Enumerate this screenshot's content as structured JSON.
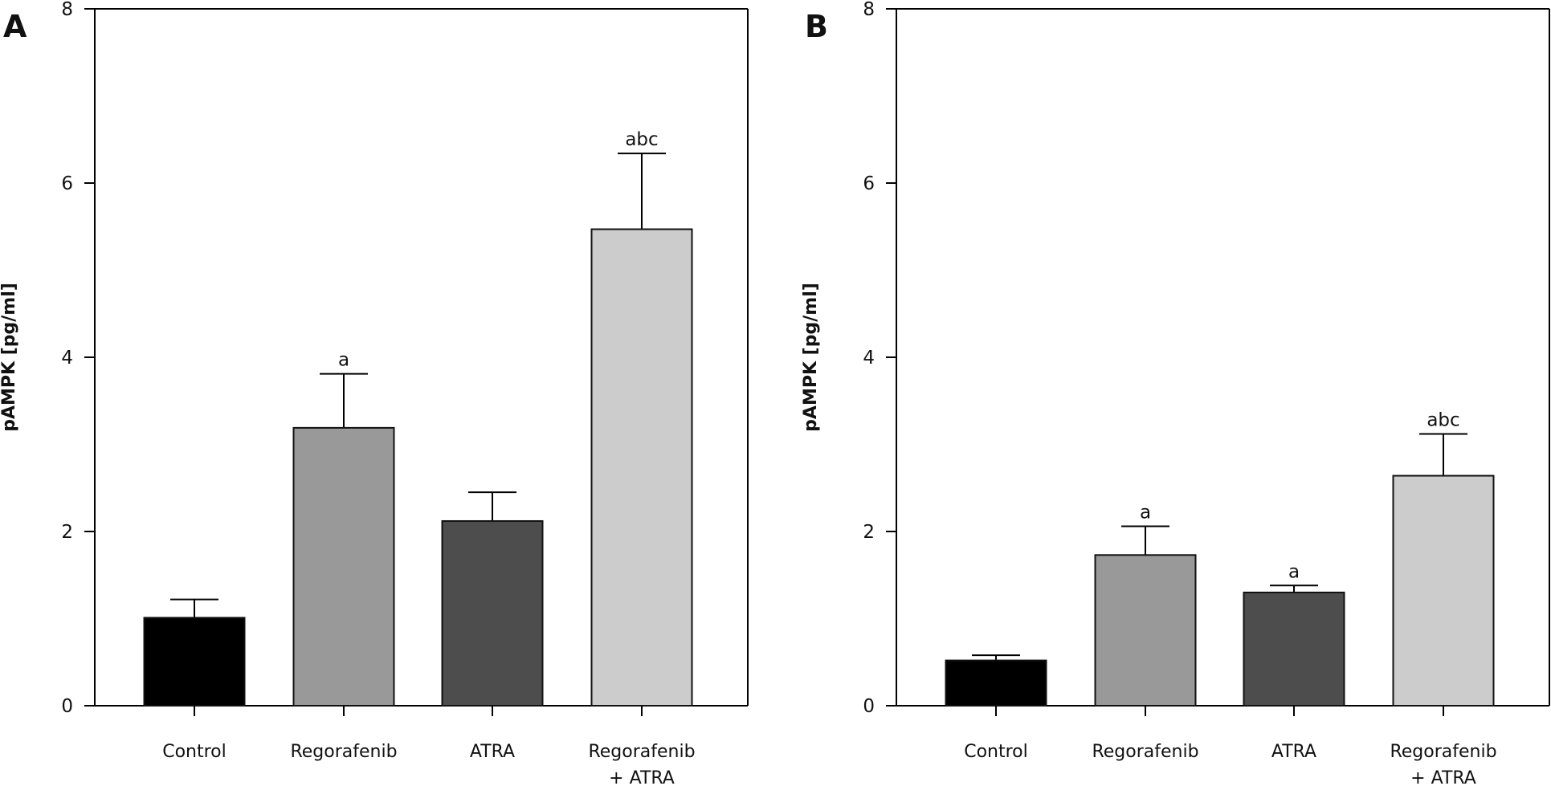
{
  "chart_data": [
    {
      "panel": "A",
      "type": "bar",
      "title": "",
      "xlabel": "",
      "ylabel": "pAMPK [pg/ml]",
      "ylim": [
        0,
        8
      ],
      "yticks": [
        0,
        2,
        4,
        6,
        8
      ],
      "grid": false,
      "legend": "none",
      "categories": [
        "Control",
        "Regorafenib",
        "ATRA",
        "Regorafenib\n+ ATRA"
      ],
      "values": [
        1.01,
        3.19,
        2.12,
        5.47
      ],
      "error_upper": [
        0.21,
        0.62,
        0.33,
        0.87
      ],
      "annotations": [
        "",
        "a",
        "",
        "abc"
      ],
      "colors": [
        "#000000",
        "#999999",
        "#4d4d4d",
        "#cccccc"
      ]
    },
    {
      "panel": "B",
      "type": "bar",
      "title": "",
      "xlabel": "",
      "ylabel": "pAMPK [pg/ml]",
      "ylim": [
        0,
        8
      ],
      "yticks": [
        0,
        2,
        4,
        6,
        8
      ],
      "grid": false,
      "legend": "none",
      "categories": [
        "Control",
        "Regorafenib",
        "ATRA",
        "Regorafenib\n+ ATRA"
      ],
      "values": [
        0.52,
        1.73,
        1.3,
        2.64
      ],
      "error_upper": [
        0.06,
        0.33,
        0.08,
        0.48
      ],
      "annotations": [
        "",
        "a",
        "a",
        "abc"
      ],
      "colors": [
        "#000000",
        "#999999",
        "#4d4d4d",
        "#cccccc"
      ]
    }
  ]
}
